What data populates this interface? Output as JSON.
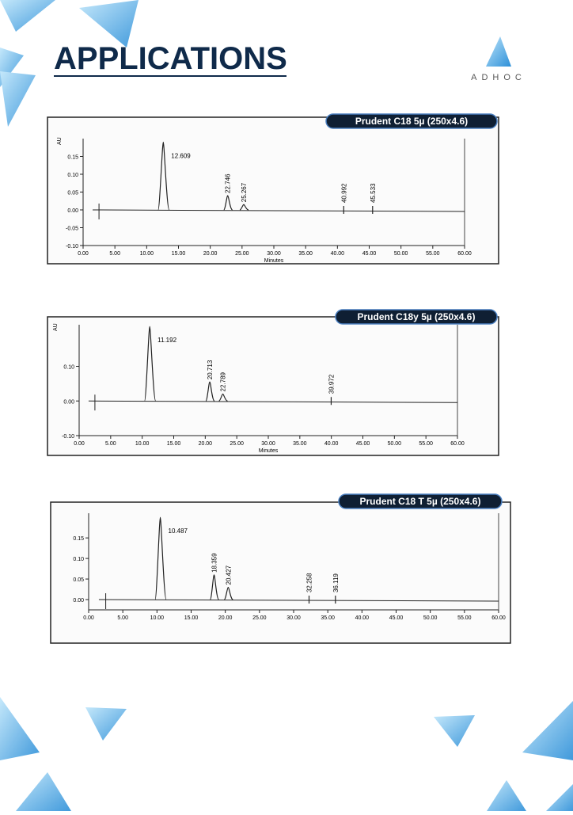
{
  "header": {
    "title": "APPLICATIONS",
    "logo": "ADHOC"
  },
  "chart_data": [
    {
      "type": "line",
      "title": "Prudent C18 5µ (250x4.6)",
      "y_label": "AU",
      "x_label": "Minutes",
      "xlim": [
        0,
        60
      ],
      "ylim": [
        -0.1,
        0.2
      ],
      "xticks": [
        {
          "value": 0,
          "label": "0.00"
        },
        {
          "value": 5,
          "label": "5.00"
        },
        {
          "value": 10,
          "label": "10.00"
        },
        {
          "value": 15,
          "label": "15.00"
        },
        {
          "value": 20,
          "label": "20.00"
        },
        {
          "value": 25,
          "label": "25.00"
        },
        {
          "value": 30,
          "label": "30.00"
        },
        {
          "value": 35,
          "label": "35.00"
        },
        {
          "value": 40,
          "label": "40.00"
        },
        {
          "value": 45,
          "label": "45.00"
        },
        {
          "value": 50,
          "label": "50.00"
        },
        {
          "value": 55,
          "label": "55.00"
        },
        {
          "value": 60,
          "label": "60.00"
        }
      ],
      "yticks": [
        {
          "value": -0.1,
          "label": "-0.10"
        },
        -0.05,
        {
          "value": 0,
          "label": "0.00"
        },
        0.05,
        {
          "value": 0.1,
          "label": "0.10"
        },
        0.15
      ],
      "peaks": {
        "x": [
          12.609,
          22.746,
          25.267,
          40.992,
          45.533
        ],
        "values": [
          0.19,
          0.04,
          0.015,
          0,
          0
        ]
      },
      "color": "#222"
    },
    {
      "type": "line",
      "title": "Prudent C18y 5µ (250x4.6)",
      "y_label": "AU",
      "x_label": "Minutes",
      "xlim": [
        0,
        60
      ],
      "ylim": [
        -0.1,
        0.22
      ],
      "xticks": [
        {
          "value": 0,
          "label": "0.00"
        },
        {
          "value": 5,
          "label": "5.00"
        },
        {
          "value": 10,
          "label": "10.00"
        },
        {
          "value": 15,
          "label": "15.00"
        },
        {
          "value": 20,
          "label": "20.00"
        },
        {
          "value": 25,
          "label": "25.00"
        },
        {
          "value": 30,
          "label": "30.00"
        },
        {
          "value": 35,
          "label": "35.00"
        },
        {
          "value": 40,
          "label": "40.00"
        },
        {
          "value": 45,
          "label": "45.00"
        },
        {
          "value": 50,
          "label": "50.00"
        },
        {
          "value": 55,
          "label": "55.00"
        },
        {
          "value": 60,
          "label": "60.00"
        }
      ],
      "yticks": [
        {
          "value": -0.1,
          "label": "-0.10"
        },
        {
          "value": 0,
          "label": "0.00"
        },
        {
          "value": 0.1,
          "label": "0.10"
        }
      ],
      "peaks": {
        "x": [
          11.192,
          20.713,
          22.789,
          39.972
        ],
        "values": [
          0.215,
          0.055,
          0.02,
          0
        ]
      },
      "color": "#222"
    },
    {
      "type": "line",
      "title": "Prudent C18 T 5µ (250x4.6)",
      "x_label": "",
      "xlim": [
        0,
        60
      ],
      "ylim": [
        -0.025,
        0.21
      ],
      "xticks": [
        {
          "value": 0,
          "label": "0.00"
        },
        {
          "value": 5,
          "label": "5.00"
        },
        {
          "value": 10,
          "label": "10.00"
        },
        {
          "value": 15,
          "label": "15.00"
        },
        {
          "value": 20,
          "label": "20.00"
        },
        {
          "value": 25,
          "label": "25.00"
        },
        {
          "value": 30,
          "label": "30.00"
        },
        {
          "value": 35,
          "label": "35.00"
        },
        {
          "value": 40,
          "label": "40.00"
        },
        {
          "value": 45,
          "label": "45.00"
        },
        {
          "value": 50,
          "label": "50.00"
        },
        {
          "value": 55,
          "label": "55.00"
        },
        {
          "value": 60,
          "label": "60.00"
        }
      ],
      "yticks": [
        {
          "value": 0,
          "label": "0.00"
        },
        0.05,
        {
          "value": 0.1,
          "label": "0.10"
        },
        0.15
      ],
      "peaks": {
        "x": [
          10.487,
          18.359,
          20.427,
          32.258,
          36.119
        ],
        "values": [
          0.2,
          0.06,
          0.03,
          0,
          0
        ]
      },
      "color": "#222"
    }
  ]
}
